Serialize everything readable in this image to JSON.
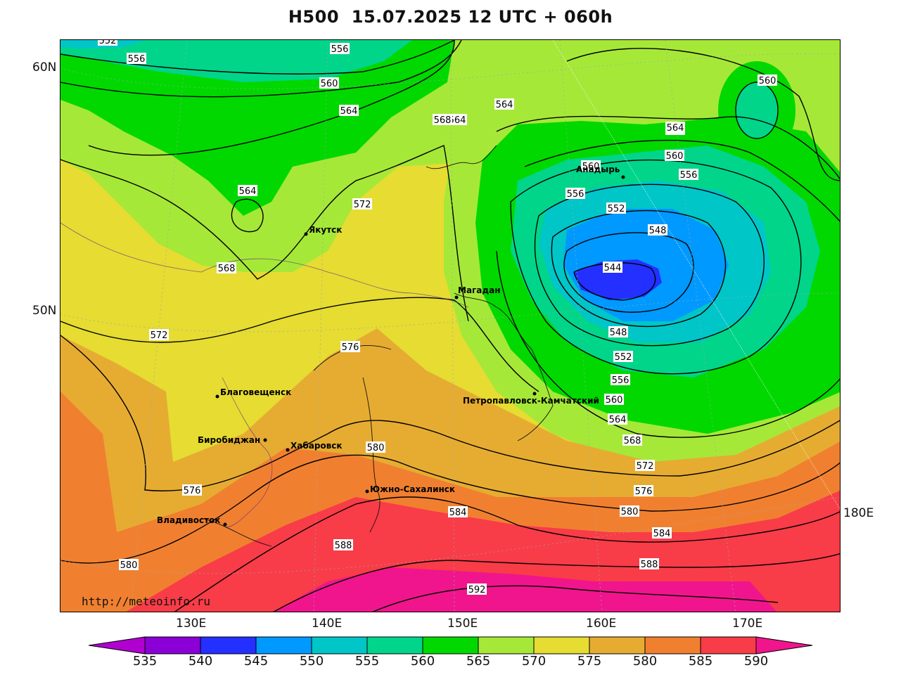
{
  "title": "H500  15.07.2025 12 UTC + 060h",
  "url": "http://meteoinfo.ru",
  "lat_labels": [
    "60N",
    "50N"
  ],
  "lon_labels": [
    "130E",
    "140E",
    "150E",
    "160E",
    "170E",
    "180E"
  ],
  "colorbar": {
    "ticks": [
      "535",
      "540",
      "545",
      "550",
      "555",
      "560",
      "565",
      "570",
      "575",
      "580",
      "585",
      "590"
    ],
    "colors": [
      "#8a00d6",
      "#2330ff",
      "#0099ff",
      "#00c6c8",
      "#00d58a",
      "#00d800",
      "#a6e838",
      "#e6dc32",
      "#e6ac32",
      "#f08030",
      "#f83c48",
      "#f0158c"
    ],
    "below_color": "#b000d0",
    "above_color": "#f0158c"
  },
  "contour_labels": [
    "552",
    "556",
    "556",
    "560",
    "564",
    "568",
    "564",
    "564",
    "564",
    "568",
    "572",
    "568",
    "572",
    "576",
    "580",
    "576",
    "580",
    "584",
    "588",
    "592",
    "560",
    "560",
    "556",
    "552",
    "548",
    "544",
    "548",
    "552",
    "556",
    "560",
    "564",
    "568",
    "572",
    "576",
    "580",
    "584",
    "588",
    "560",
    "564",
    "560",
    "556",
    "568"
  ],
  "cities": [
    "Якутск",
    "Магадан",
    "Анадырь",
    "Благовещенск",
    "Биробиджан",
    "Хабаровск",
    "Петропавловск-Камчатский",
    "Южно-Сахалинск",
    "Владивосток"
  ]
}
